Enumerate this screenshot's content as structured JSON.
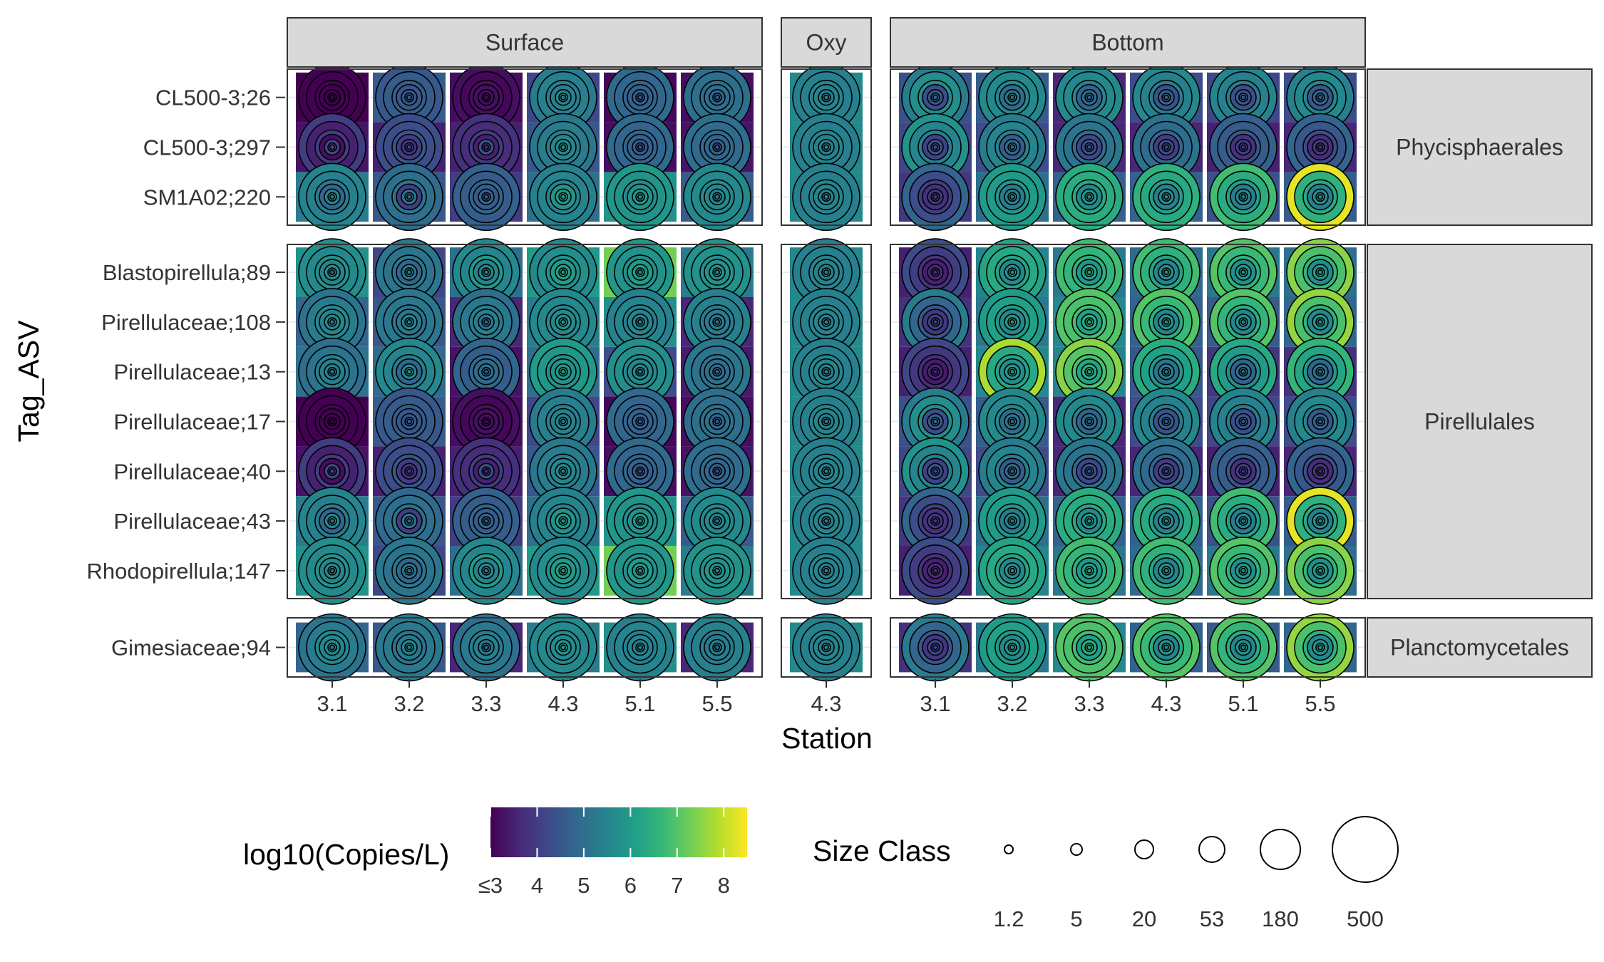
{
  "chart_data": {
    "type": "heatmap",
    "title": "",
    "xlabel": "Station",
    "ylabel": "Tag_ASV",
    "depth_panels": [
      {
        "name": "Surface",
        "stations": [
          "3.1",
          "3.2",
          "3.3",
          "4.3",
          "5.1",
          "5.5"
        ]
      },
      {
        "name": "Oxy",
        "stations": [
          "4.3"
        ]
      },
      {
        "name": "Bottom",
        "stations": [
          "3.1",
          "3.2",
          "3.3",
          "4.3",
          "5.1",
          "5.5"
        ]
      }
    ],
    "order_groups": [
      {
        "name": "Phycisphaerales",
        "asvs": [
          "CL500-3;26",
          "CL500-3;297",
          "SM1A02;220"
        ]
      },
      {
        "name": "Pirellulales",
        "asvs": [
          "Blastopirellula;89",
          "Pirellulaceae;108",
          "Pirellulaceae;13",
          "Pirellulaceae;17",
          "Pirellulaceae;40",
          "Pirellulaceae;43",
          "Rhodopirellula;147"
        ]
      },
      {
        "name": "Planctomycetales",
        "asvs": [
          "Gimesiaceae;94"
        ]
      }
    ],
    "size_classes": [
      1.2,
      5,
      20,
      53,
      180,
      500
    ],
    "color_scale": {
      "title": "log10(Copies/L)",
      "min": 3,
      "max": 8.5,
      "tick_labels": [
        "≤3",
        "4",
        "5",
        "6",
        "7",
        "8"
      ],
      "tick_values": [
        3,
        4,
        5,
        6,
        7,
        8
      ],
      "palette": "viridis"
    },
    "size_legend": {
      "title": "Size Class",
      "labels": [
        "1.2",
        "5",
        "20",
        "53",
        "180",
        "500"
      ]
    },
    "values": {
      "Surface": [
        [
          [
            3.0,
            3.0,
            3.0,
            3.0,
            3.0,
            3.0,
            3.0,
            3.0,
            3.0,
            3.0,
            3.0
          ],
          [
            3.3,
            4.0,
            4.3,
            4.0,
            4.3,
            3.8,
            4.2,
            3.2,
            4.0,
            3.5,
            4.0
          ],
          [
            5.3,
            5.3,
            5.6,
            5.6,
            5.2,
            5.5,
            5.6,
            4.8,
            5.3,
            5.4,
            5.5
          ],
          [
            5.8,
            3.5,
            4.7,
            5.6,
            4.7,
            5.3,
            5.7,
            5.5,
            5.8,
            5.6,
            5.7
          ],
          [
            4.8,
            5.2,
            5.3,
            4.5,
            5.3,
            5.6,
            5.6,
            5.5,
            5.6,
            5.3,
            5.1
          ],
          [
            5.1,
            4.7,
            5.1,
            3.5,
            5.5,
            4.8,
            5.4,
            5.4,
            5.4,
            5.1,
            5.0
          ]
        ],
        [
          [
            4.6,
            4.3,
            4.3,
            4.6,
            4.7,
            4.6,
            4.5,
            4.5,
            4.6,
            4.6,
            4.5
          ],
          [
            3.5,
            4.5,
            4.0,
            4.1,
            4.1,
            4.1,
            3.8,
            4.0,
            4.5,
            4.3,
            4.3
          ],
          [
            4.5,
            3.5,
            4.6,
            4.9,
            4.6,
            5.2,
            5.1,
            4.0,
            5.1,
            5.0,
            4.9
          ],
          [
            4.2,
            4.6,
            5.6,
            5.1,
            5.1,
            5.4,
            5.1,
            4.8,
            5.2,
            5.1,
            5.2
          ],
          [
            4.5,
            5.0,
            6.2,
            5.2,
            5.3,
            5.5,
            5.5,
            5.2,
            5.1,
            5.2,
            5.2
          ],
          [
            4.9,
            5.5,
            6.0,
            5.3,
            5.8,
            5.8,
            5.5,
            4.8,
            5.4,
            5.5,
            5.6
          ]
        ],
        [
          [
            3.2,
            3.2,
            3.3,
            3.2,
            3.2,
            3.2,
            3.2,
            3.2,
            3.2,
            3.1,
            3.2
          ],
          [
            3.5,
            3.5,
            3.7,
            3.6,
            3.6,
            3.8,
            4.4,
            3.5,
            4.0,
            3.7,
            3.8
          ],
          [
            4.0,
            4.3,
            5.0,
            4.8,
            4.5,
            4.6,
            4.8,
            4.6,
            4.8,
            4.6,
            4.7
          ],
          [
            5.0,
            5.0,
            5.5,
            5.5,
            5.3,
            5.5,
            5.6,
            5.5,
            6.0,
            5.5,
            5.6
          ],
          [
            3.6,
            5.4,
            5.3,
            5.3,
            4.8,
            5.2,
            5.2,
            5.4,
            5.3,
            5.2,
            5.0
          ],
          [
            3.3,
            4.4,
            4.6,
            4.5,
            4.4,
            5.0,
            5.0,
            4.9,
            4.9,
            4.6,
            4.8
          ]
        ],
        [
          [
            4.2,
            4.6,
            5.0,
            5.3,
            5.5,
            5.5,
            5.5,
            5.4,
            5.4,
            5.4,
            5.3
          ],
          [
            4.5,
            4.8,
            5.1,
            5.5,
            5.5,
            5.8,
            5.6,
            5.5,
            5.4,
            5.3,
            5.2
          ],
          [
            5.0,
            5.3,
            5.5,
            5.9,
            6.0,
            6.2,
            6.0,
            5.8,
            5.5,
            5.5,
            5.4
          ],
          [
            6.0,
            5.5,
            6.0,
            6.0,
            6.0,
            6.2,
            6.1,
            6.0,
            5.8,
            5.7,
            5.6
          ],
          [
            5.3,
            5.5,
            5.8,
            5.9,
            6.0,
            5.9,
            5.8,
            5.6,
            5.6,
            5.6,
            5.6
          ],
          [
            5.0,
            5.3,
            5.5,
            5.9,
            6.0,
            6.1,
            6.0,
            5.8,
            5.8,
            5.9,
            6.0
          ]
        ],
        [
          [
            3.1,
            3.3,
            3.8,
            4.2,
            4.5,
            4.6,
            4.7,
            4.7,
            4.8,
            4.8,
            4.9
          ],
          [
            3.2,
            3.4,
            3.8,
            4.0,
            4.3,
            4.5,
            4.6,
            4.7,
            4.8,
            4.8,
            4.9
          ],
          [
            5.8,
            5.5,
            5.4,
            5.5,
            5.6,
            5.8,
            5.9,
            5.8,
            5.7,
            5.8,
            5.9
          ],
          [
            7.3,
            5.9,
            5.8,
            5.7,
            5.7,
            5.8,
            6.0,
            6.0,
            5.8,
            5.8,
            5.9
          ],
          [
            5.7,
            5.5,
            5.5,
            5.6,
            5.5,
            5.4,
            5.4,
            5.5,
            5.4,
            5.5,
            5.4
          ],
          [
            4.3,
            4.6,
            4.9,
            5.1,
            5.3,
            5.5,
            5.6,
            5.6,
            5.6,
            5.7,
            5.7
          ]
        ],
        [
          [
            3.2,
            3.5,
            4.0,
            4.4,
            4.6,
            4.8,
            4.8,
            5.0,
            5.0,
            5.0,
            5.0
          ],
          [
            3.3,
            3.5,
            3.8,
            4.1,
            4.3,
            4.6,
            4.7,
            4.8,
            4.9,
            4.9,
            5.0
          ],
          [
            4.6,
            4.8,
            5.0,
            5.2,
            5.3,
            5.5,
            5.5,
            5.6,
            5.6,
            5.6,
            5.6
          ],
          [
            5.3,
            5.3,
            5.5,
            5.6,
            5.6,
            5.7,
            5.8,
            5.8,
            5.8,
            5.8,
            5.8
          ],
          [
            3.6,
            4.4,
            4.7,
            4.9,
            5.1,
            5.2,
            5.3,
            5.3,
            5.3,
            5.4,
            5.4
          ],
          [
            3.4,
            3.7,
            4.2,
            4.5,
            4.7,
            4.9,
            5.0,
            5.0,
            5.1,
            5.1,
            5.2
          ]
        ]
      ],
      "Oxy": [
        [
          [
            5.6,
            5.5,
            5.5,
            5.6,
            5.6,
            5.3,
            5.4,
            5.5,
            5.5,
            5.4,
            5.4
          ]
        ]
      ],
      "Bottom": [
        [
          [
            4.4,
            3.7,
            4.4,
            3.8,
            4.9,
            4.8,
            4.5,
            4.3,
            5.7,
            5.7,
            5.3
          ],
          [
            4.2,
            3.5,
            4.1,
            3.8,
            4.2,
            4.4,
            4.4,
            4.1,
            5.4,
            5.5,
            5.8
          ],
          [
            3.9,
            3.8,
            4.0,
            3.8,
            3.9,
            4.0,
            3.9,
            3.8,
            4.0,
            4.3,
            4.8
          ],
          [
            3.5,
            3.7,
            3.9,
            3.6,
            3.8,
            3.8,
            3.7,
            3.5,
            3.8,
            4.0,
            4.3
          ],
          [
            3.8,
            3.8,
            4.1,
            3.7,
            4.1,
            4.2,
            4.1,
            3.9,
            4.5,
            4.8,
            5.3
          ],
          [
            3.5,
            3.6,
            3.8,
            3.5,
            3.7,
            3.7,
            3.6,
            3.4,
            3.7,
            3.9,
            4.2
          ]
        ],
        [
          [
            4.6,
            4.4,
            4.8,
            4.5,
            4.9,
            5.2,
            5.2,
            4.9,
            5.6,
            5.6,
            5.6
          ],
          [
            4.3,
            4.2,
            4.4,
            4.3,
            4.7,
            5.0,
            4.9,
            4.6,
            5.4,
            5.5,
            5.3
          ],
          [
            5.0,
            4.9,
            5.2,
            5.0,
            5.3,
            5.6,
            5.5,
            5.3,
            5.9,
            6.0,
            6.0
          ],
          [
            5.5,
            5.4,
            5.6,
            5.4,
            5.7,
            5.9,
            5.8,
            5.6,
            6.2,
            6.3,
            6.2
          ],
          [
            5.2,
            5.2,
            5.5,
            5.3,
            5.7,
            5.9,
            5.9,
            5.6,
            6.0,
            6.1,
            6.0
          ],
          [
            5.6,
            5.5,
            5.7,
            5.5,
            5.8,
            6.0,
            6.0,
            5.7,
            6.2,
            6.3,
            7.8
          ]
        ],
        [
          [
            3.6,
            3.6,
            4.2,
            4.0,
            4.6,
            5.0,
            5.0,
            4.7,
            5.5,
            5.6,
            5.6
          ],
          [
            3.6,
            3.6,
            4.0,
            3.8,
            4.3,
            4.5,
            4.4,
            4.2,
            4.9,
            5.1,
            5.2
          ],
          [
            4.7,
            4.8,
            5.2,
            5.0,
            5.6,
            5.9,
            5.9,
            5.6,
            6.3,
            6.4,
            6.4
          ],
          [
            5.2,
            5.3,
            5.6,
            5.4,
            6.0,
            6.2,
            6.2,
            5.9,
            6.5,
            6.6,
            6.8
          ],
          [
            5.6,
            5.5,
            5.9,
            5.7,
            6.2,
            6.4,
            6.4,
            6.1,
            6.8,
            6.9,
            7.0
          ],
          [
            5.5,
            5.4,
            5.8,
            5.6,
            6.2,
            6.5,
            6.4,
            6.2,
            6.9,
            7.0,
            7.5
          ]
        ],
        [
          [
            4.3,
            3.6,
            4.2,
            3.9,
            4.5,
            4.8,
            4.7,
            4.4,
            5.3,
            5.4,
            5.6
          ],
          [
            3.6,
            3.5,
            3.8,
            3.6,
            4.0,
            4.3,
            4.3,
            4.0,
            4.8,
            4.9,
            5.1
          ],
          [
            4.7,
            4.8,
            5.1,
            4.9,
            5.4,
            5.7,
            5.7,
            5.4,
            6.1,
            6.3,
            6.5
          ],
          [
            4.9,
            4.9,
            5.2,
            5.0,
            5.5,
            5.8,
            5.8,
            5.5,
            6.2,
            6.5,
            6.8
          ],
          [
            4.7,
            4.8,
            5.1,
            4.9,
            5.5,
            5.8,
            5.8,
            5.5,
            6.4,
            6.7,
            7.0
          ],
          [
            4.5,
            4.4,
            4.8,
            4.6,
            5.0,
            5.4,
            5.4,
            5.1,
            5.9,
            6.1,
            6.4
          ]
        ],
        [
          [
            4.2,
            3.5,
            4.1,
            3.6,
            4.5,
            4.7,
            4.5,
            4.3,
            5.3,
            5.4,
            5.5
          ],
          [
            3.5,
            3.5,
            3.7,
            3.5,
            3.8,
            4.1,
            4.0,
            3.8,
            4.5,
            4.6,
            4.7
          ],
          [
            4.4,
            4.5,
            4.9,
            4.7,
            5.2,
            5.6,
            5.6,
            5.3,
            6.1,
            6.4,
            6.8
          ],
          [
            5.2,
            5.1,
            5.4,
            5.2,
            5.7,
            6.0,
            6.0,
            5.7,
            6.5,
            6.7,
            7.0
          ],
          [
            4.6,
            4.7,
            5.1,
            4.9,
            5.4,
            5.8,
            5.8,
            5.5,
            6.4,
            6.6,
            7.0
          ],
          [
            3.9,
            3.9,
            4.3,
            4.1,
            4.7,
            5.1,
            5.0,
            4.7,
            5.7,
            6.0,
            6.3
          ]
        ],
        [
          [
            4.3,
            3.6,
            4.3,
            3.8,
            4.6,
            4.9,
            4.8,
            4.5,
            5.5,
            5.6,
            5.4
          ],
          [
            3.6,
            3.5,
            3.6,
            3.5,
            3.7,
            3.9,
            3.9,
            3.7,
            4.3,
            4.5,
            4.8
          ],
          [
            4.6,
            4.6,
            5.0,
            4.8,
            5.4,
            5.7,
            5.7,
            5.4,
            6.3,
            6.5,
            8.3
          ],
          [
            5.0,
            4.9,
            5.3,
            5.1,
            5.7,
            6.0,
            6.0,
            5.7,
            6.6,
            6.9,
            7.5
          ],
          [
            4.8,
            4.8,
            5.2,
            5.0,
            5.6,
            5.9,
            5.9,
            5.6,
            6.5,
            6.9,
            7.6
          ],
          [
            3.8,
            3.9,
            4.3,
            4.1,
            4.7,
            5.2,
            5.1,
            4.8,
            5.9,
            6.2,
            6.6
          ]
        ]
      ]
    }
  }
}
